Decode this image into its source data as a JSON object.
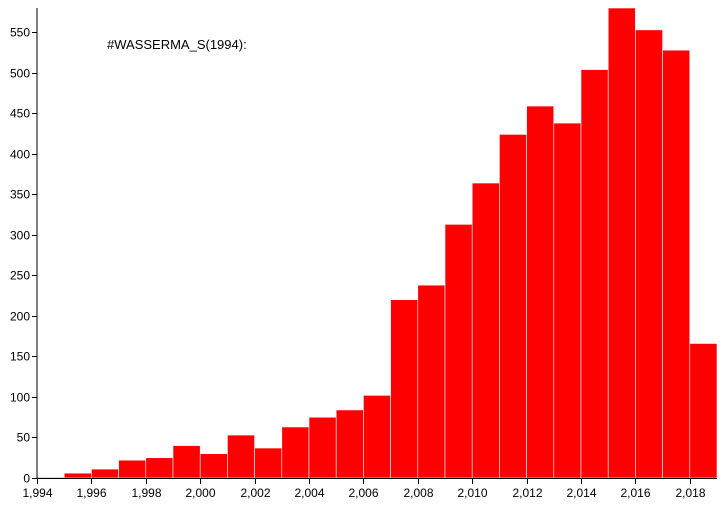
{
  "chart_data": {
    "type": "bar",
    "annotation": "#WASSERMA_S(1994):",
    "bar_color": "#ff0000",
    "bar_edge_color": "#ffffff",
    "x": [
      1994,
      1995,
      1996,
      1997,
      1998,
      1999,
      2000,
      2001,
      2002,
      2003,
      2004,
      2005,
      2006,
      2007,
      2008,
      2009,
      2010,
      2011,
      2012,
      2013,
      2014,
      2015,
      2016,
      2017,
      2018
    ],
    "values": [
      1,
      6,
      11,
      22,
      25,
      40,
      30,
      53,
      37,
      63,
      75,
      84,
      102,
      220,
      238,
      313,
      364,
      424,
      459,
      438,
      504,
      580,
      553,
      528,
      166
    ],
    "xlim": [
      1994,
      2019
    ],
    "ylim": [
      0,
      580
    ],
    "x_ticks": [
      1994,
      1996,
      1998,
      2000,
      2002,
      2004,
      2006,
      2008,
      2010,
      2012,
      2014,
      2016,
      2018
    ],
    "x_tick_labels": [
      "1,994",
      "1,996",
      "1,998",
      "2,000",
      "2,002",
      "2,004",
      "2,006",
      "2,008",
      "2,010",
      "2,012",
      "2,014",
      "2,016",
      "2,018"
    ],
    "y_ticks": [
      0,
      50,
      100,
      150,
      200,
      250,
      300,
      350,
      400,
      450,
      500,
      550
    ],
    "y_tick_labels": [
      "0",
      "50",
      "100",
      "150",
      "200",
      "250",
      "300",
      "350",
      "400",
      "450",
      "500",
      "550"
    ]
  }
}
